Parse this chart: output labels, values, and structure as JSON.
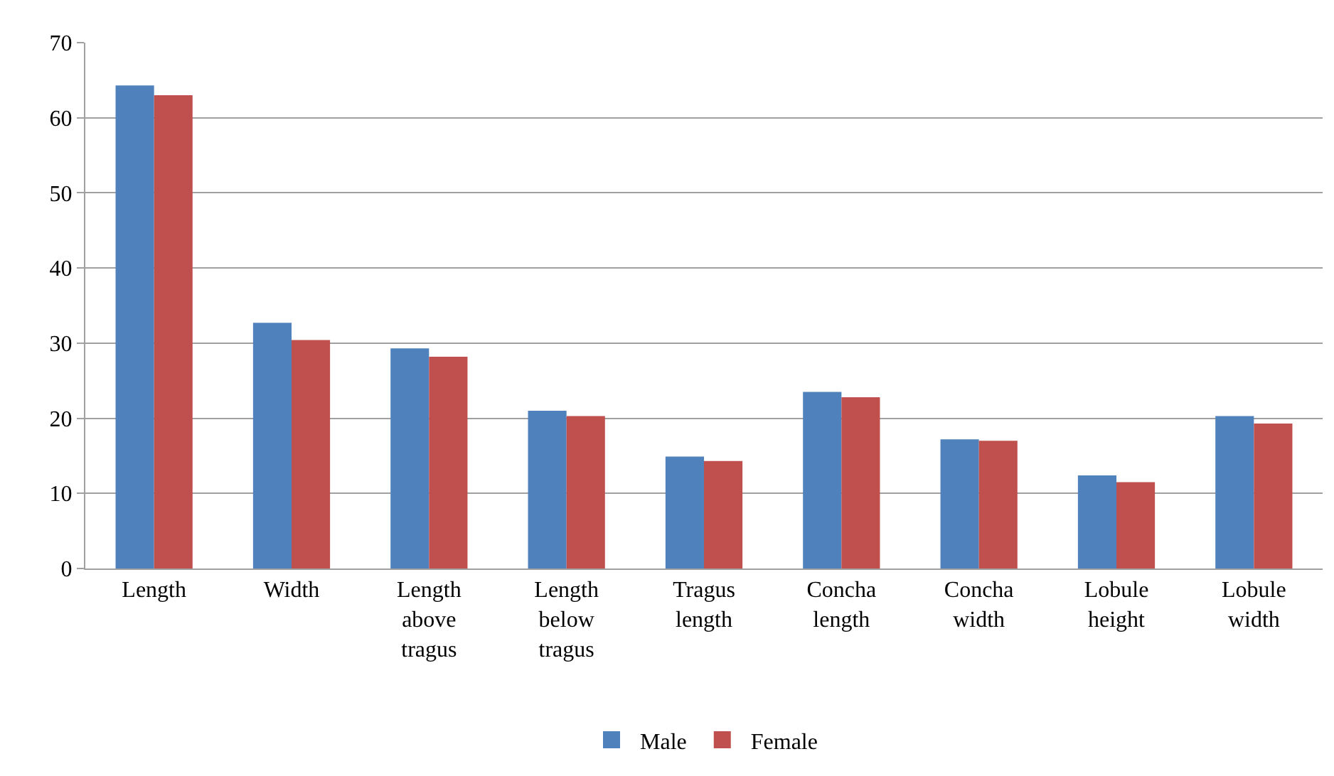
{
  "chart_data": {
    "type": "bar",
    "categories": [
      "Length",
      "Width",
      "Length above tragus",
      "Length below tragus",
      "Tragus length",
      "Concha length",
      "Concha width",
      "Lobule height",
      "Lobule width"
    ],
    "series": [
      {
        "name": "Male",
        "color": "#4f81bd",
        "values": [
          64.3,
          32.7,
          29.3,
          21.0,
          14.9,
          23.5,
          17.2,
          12.4,
          20.3
        ]
      },
      {
        "name": "Female",
        "color": "#c0504d",
        "values": [
          63.0,
          30.4,
          28.2,
          20.3,
          14.3,
          22.8,
          17.0,
          11.5,
          19.3
        ]
      }
    ],
    "ylim": [
      0,
      70
    ],
    "yticks": [
      0,
      10,
      20,
      30,
      40,
      50,
      60,
      70
    ],
    "grid": "y",
    "legend": "bottom"
  }
}
